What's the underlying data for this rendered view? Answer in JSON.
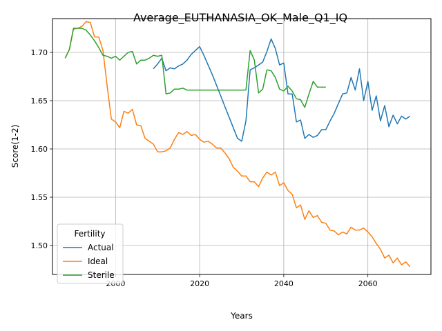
{
  "chart_data": {
    "type": "line",
    "title": "Average_EUTHANASIA_OK_Male_Q1_IQ",
    "xlabel": "Years",
    "ylabel": "Score(1-2)",
    "xlim": [
      1985,
      2075
    ],
    "ylim": [
      1.47,
      1.735
    ],
    "xticks": [
      2000,
      2020,
      2040,
      2060
    ],
    "yticks": [
      1.5,
      1.55,
      1.6,
      1.65,
      1.7
    ],
    "xtick_labels": [
      "2000",
      "2020",
      "2040",
      "2060"
    ],
    "ytick_labels": [
      "1.50",
      "1.55",
      "1.60",
      "1.65",
      "1.70"
    ],
    "grid": true,
    "legend": {
      "title": "Fertility",
      "placement": "lower-left"
    },
    "series": [
      {
        "name": "Actual",
        "color": "#1f77b4",
        "x": [
          2009,
          2010,
          2011,
          2012,
          2013,
          2014,
          2015,
          2016,
          2017,
          2018,
          2019,
          2020,
          2021,
          2022,
          2023,
          2024,
          2025,
          2026,
          2027,
          2028,
          2029,
          2030,
          2031,
          2032,
          2033,
          2034,
          2035,
          2036,
          2037,
          2038,
          2039,
          2040,
          2041,
          2042,
          2043,
          2044,
          2045,
          2046,
          2047,
          2048,
          2049,
          2050,
          2051,
          2052,
          2053,
          2054,
          2055,
          2056,
          2057,
          2058,
          2059,
          2060,
          2061,
          2062,
          2063,
          2064,
          2065,
          2066,
          2067,
          2068,
          2069,
          2070
        ],
        "y": [
          1.683,
          1.688,
          1.694,
          1.681,
          1.684,
          1.683,
          1.686,
          1.688,
          1.692,
          1.698,
          1.702,
          1.706,
          1.697,
          1.687,
          1.677,
          1.666,
          1.655,
          1.644,
          1.633,
          1.622,
          1.611,
          1.608,
          1.629,
          1.682,
          1.684,
          1.687,
          1.69,
          1.701,
          1.714,
          1.704,
          1.687,
          1.689,
          1.657,
          1.657,
          1.628,
          1.63,
          1.611,
          1.615,
          1.612,
          1.614,
          1.62,
          1.62,
          1.629,
          1.637,
          1.647,
          1.657,
          1.658,
          1.674,
          1.661,
          1.683,
          1.65,
          1.67,
          1.64,
          1.655,
          1.629,
          1.645,
          1.623,
          1.635,
          1.626,
          1.634,
          1.631,
          1.634
        ]
      },
      {
        "name": "Ideal",
        "color": "#ff7f0e",
        "x": [
          1988,
          1989,
          1990,
          1991,
          1992,
          1993,
          1994,
          1995,
          1996,
          1997,
          1998,
          1999,
          2000,
          2001,
          2002,
          2003,
          2004,
          2005,
          2006,
          2007,
          2008,
          2009,
          2010,
          2011,
          2012,
          2013,
          2014,
          2015,
          2016,
          2017,
          2018,
          2019,
          2020,
          2021,
          2022,
          2023,
          2024,
          2025,
          2026,
          2027,
          2028,
          2029,
          2030,
          2031,
          2032,
          2033,
          2034,
          2035,
          2036,
          2037,
          2038,
          2039,
          2040,
          2041,
          2042,
          2043,
          2044,
          2045,
          2046,
          2047,
          2048,
          2049,
          2050,
          2051,
          2052,
          2053,
          2054,
          2055,
          2056,
          2057,
          2058,
          2059,
          2060,
          2061,
          2062,
          2063,
          2064,
          2065,
          2066,
          2067,
          2068,
          2069,
          2070
        ],
        "y": [
          1.694,
          1.703,
          1.724,
          1.725,
          1.727,
          1.732,
          1.731,
          1.716,
          1.716,
          1.702,
          1.665,
          1.631,
          1.628,
          1.622,
          1.639,
          1.637,
          1.641,
          1.625,
          1.624,
          1.611,
          1.608,
          1.605,
          1.597,
          1.597,
          1.598,
          1.601,
          1.61,
          1.617,
          1.615,
          1.618,
          1.614,
          1.615,
          1.61,
          1.607,
          1.608,
          1.605,
          1.601,
          1.601,
          1.596,
          1.59,
          1.581,
          1.577,
          1.572,
          1.572,
          1.566,
          1.566,
          1.561,
          1.57,
          1.576,
          1.573,
          1.576,
          1.562,
          1.565,
          1.557,
          1.553,
          1.539,
          1.542,
          1.527,
          1.536,
          1.529,
          1.531,
          1.524,
          1.523,
          1.516,
          1.515,
          1.511,
          1.514,
          1.512,
          1.519,
          1.516,
          1.516,
          1.518,
          1.514,
          1.509,
          1.502,
          1.496,
          1.487,
          1.49,
          1.482,
          1.487,
          1.48,
          1.483,
          1.478
        ]
      },
      {
        "name": "Sterile",
        "color": "#2ca02c",
        "x": [
          1988,
          1989,
          1990,
          1991,
          1992,
          1993,
          1994,
          1995,
          1996,
          1997,
          1998,
          1999,
          2000,
          2001,
          2002,
          2003,
          2004,
          2005,
          2006,
          2007,
          2008,
          2009,
          2010,
          2011,
          2012,
          2013,
          2014,
          2015,
          2016,
          2017,
          2018,
          2019,
          2020,
          2021,
          2022,
          2023,
          2024,
          2025,
          2026,
          2027,
          2028,
          2029,
          2030,
          2031,
          2032,
          2033,
          2034,
          2035,
          2036,
          2037,
          2038,
          2039,
          2040,
          2041,
          2042,
          2043,
          2044,
          2045,
          2046,
          2047,
          2048,
          2049,
          2050
        ],
        "y": [
          1.694,
          1.703,
          1.725,
          1.725,
          1.725,
          1.723,
          1.718,
          1.712,
          1.705,
          1.697,
          1.696,
          1.694,
          1.696,
          1.692,
          1.696,
          1.7,
          1.701,
          1.688,
          1.692,
          1.692,
          1.694,
          1.697,
          1.696,
          1.697,
          1.657,
          1.658,
          1.662,
          1.662,
          1.663,
          1.661,
          1.661,
          1.661,
          1.661,
          1.661,
          1.661,
          1.661,
          1.661,
          1.661,
          1.661,
          1.661,
          1.661,
          1.661,
          1.661,
          1.661,
          1.702,
          1.692,
          1.658,
          1.662,
          1.682,
          1.681,
          1.674,
          1.662,
          1.66,
          1.665,
          1.66,
          1.652,
          1.651,
          1.643,
          1.657,
          1.67,
          1.664,
          1.664,
          1.664
        ]
      }
    ]
  }
}
